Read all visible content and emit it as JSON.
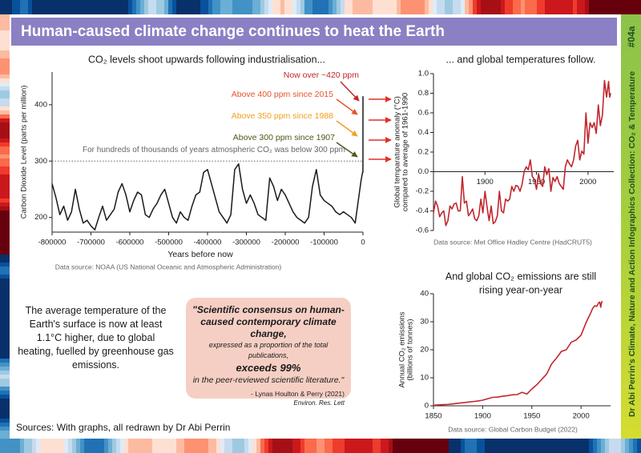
{
  "header": {
    "title": "Human-caused climate change continues to heat the Earth"
  },
  "side": {
    "code": "#04a",
    "collection": "Dr Abi Perrin's Climate, Nature and Action Infographics Collection: CO₂ & Temperature"
  },
  "chart_data": [
    {
      "type": "line",
      "title": "CO₂ levels shoot upwards following industrialisation...",
      "xlabel": "Years before now",
      "ylabel": [
        "Carbon Dioxide Level (parts per million)"
      ],
      "source": "Data source: NOAA (US National Oceanic and Atmospheric Administration)",
      "color": "#1a1a1a",
      "x": [
        -800000,
        -790000,
        -780000,
        -770000,
        -760000,
        -750000,
        -740000,
        -730000,
        -720000,
        -710000,
        -700000,
        -690000,
        -680000,
        -670000,
        -660000,
        -650000,
        -640000,
        -630000,
        -620000,
        -610000,
        -600000,
        -590000,
        -580000,
        -570000,
        -560000,
        -550000,
        -540000,
        -530000,
        -520000,
        -510000,
        -500000,
        -490000,
        -480000,
        -470000,
        -460000,
        -450000,
        -440000,
        -430000,
        -420000,
        -410000,
        -400000,
        -390000,
        -380000,
        -370000,
        -360000,
        -350000,
        -340000,
        -330000,
        -320000,
        -310000,
        -300000,
        -290000,
        -280000,
        -270000,
        -260000,
        -250000,
        -240000,
        -230000,
        -220000,
        -210000,
        -200000,
        -190000,
        -180000,
        -170000,
        -160000,
        -150000,
        -140000,
        -130000,
        -120000,
        -110000,
        -100000,
        -90000,
        -80000,
        -70000,
        -60000,
        -50000,
        -40000,
        -30000,
        -20000,
        -10000,
        -5000,
        -1000,
        -200,
        -100,
        -50,
        -20,
        0
      ],
      "values": [
        260,
        235,
        205,
        220,
        195,
        210,
        250,
        215,
        190,
        195,
        185,
        178,
        200,
        220,
        195,
        205,
        215,
        245,
        260,
        240,
        210,
        230,
        245,
        240,
        205,
        200,
        215,
        225,
        240,
        250,
        225,
        200,
        190,
        210,
        200,
        195,
        220,
        240,
        245,
        280,
        285,
        260,
        235,
        210,
        200,
        190,
        205,
        285,
        295,
        250,
        225,
        240,
        225,
        205,
        200,
        195,
        270,
        255,
        230,
        250,
        240,
        225,
        210,
        200,
        195,
        190,
        200,
        255,
        285,
        240,
        230,
        225,
        220,
        210,
        205,
        210,
        205,
        200,
        190,
        240,
        265,
        280,
        280,
        295,
        315,
        340,
        415
      ],
      "xlim": [
        -800000,
        0
      ],
      "ylim": [
        174,
        458
      ],
      "xticks": [
        -800000,
        -700000,
        -600000,
        -500000,
        -400000,
        -300000,
        -200000,
        -100000,
        0
      ],
      "yticks": [
        200,
        300,
        400
      ],
      "threshold": 300,
      "threshold_label": "For hundreds of thousands of years atmospheric CO₂ was below 300 ppm",
      "annotations": [
        {
          "text": "Now over ~420 ppm",
          "color": "#c0272d"
        },
        {
          "text": "Above 400 ppm since 2015",
          "color": "#e8532a"
        },
        {
          "text": "Above 350 ppm since 1988",
          "color": "#f0a020"
        },
        {
          "text": "Above 300 ppm since 1907",
          "color": "#4a5a1e"
        }
      ]
    },
    {
      "type": "line",
      "title": "... and global temperatures follow.",
      "ylabel": [
        "Global temparature anomaly (°C)",
        "compared to average of 1961-1990"
      ],
      "source": "Data source: Met Office Hadley Centre (HadCRUT5)",
      "color": "#c0272d",
      "x": [
        1850,
        1852,
        1854,
        1856,
        1858,
        1860,
        1862,
        1864,
        1866,
        1868,
        1870,
        1872,
        1874,
        1876,
        1878,
        1880,
        1882,
        1884,
        1886,
        1888,
        1890,
        1892,
        1894,
        1896,
        1898,
        1900,
        1902,
        1904,
        1906,
        1908,
        1910,
        1912,
        1914,
        1916,
        1918,
        1920,
        1922,
        1924,
        1926,
        1928,
        1930,
        1932,
        1934,
        1936,
        1938,
        1940,
        1942,
        1944,
        1946,
        1948,
        1950,
        1952,
        1954,
        1956,
        1958,
        1960,
        1962,
        1964,
        1966,
        1968,
        1970,
        1972,
        1974,
        1976,
        1978,
        1980,
        1982,
        1984,
        1986,
        1988,
        1990,
        1992,
        1994,
        1996,
        1998,
        2000,
        2002,
        2004,
        2006,
        2008,
        2010,
        2012,
        2014,
        2016,
        2018,
        2020,
        2021,
        2022
      ],
      "values": [
        -0.42,
        -0.3,
        -0.35,
        -0.46,
        -0.42,
        -0.4,
        -0.55,
        -0.5,
        -0.35,
        -0.38,
        -0.33,
        -0.32,
        -0.4,
        -0.4,
        -0.05,
        -0.32,
        -0.3,
        -0.45,
        -0.42,
        -0.38,
        -0.48,
        -0.5,
        -0.45,
        -0.28,
        -0.42,
        -0.2,
        -0.36,
        -0.5,
        -0.35,
        -0.53,
        -0.51,
        -0.45,
        -0.2,
        -0.4,
        -0.42,
        -0.28,
        -0.3,
        -0.28,
        -0.15,
        -0.2,
        -0.14,
        -0.15,
        -0.2,
        -0.13,
        0.0,
        0.05,
        0.02,
        0.12,
        -0.05,
        -0.08,
        -0.18,
        -0.02,
        -0.12,
        -0.15,
        0.05,
        -0.03,
        0.03,
        -0.2,
        -0.06,
        -0.1,
        -0.05,
        -0.12,
        -0.15,
        -0.18,
        0.05,
        0.12,
        0.08,
        0.05,
        0.12,
        0.26,
        0.32,
        0.12,
        0.21,
        0.18,
        0.6,
        0.29,
        0.5,
        0.45,
        0.5,
        0.39,
        0.68,
        0.47,
        0.58,
        0.93,
        0.76,
        0.92,
        0.76,
        0.8
      ],
      "xlim": [
        1850,
        2025
      ],
      "ylim": [
        -0.6,
        1.0
      ],
      "xticks": [
        1900,
        1950,
        2000
      ],
      "yticks": [
        {
          "value": 1.0,
          "label": "1.0"
        },
        0.8,
        0.6,
        0.4,
        0.2,
        {
          "value": 0.0,
          "label": "0.0"
        },
        -0.2,
        -0.4,
        -0.6
      ]
    },
    {
      "type": "line",
      "title": [
        "And global CO₂ emissions are still",
        "rising year-on-year"
      ],
      "ylabel": [
        "Annual CO₂ emissions",
        "(billions of tonnes)"
      ],
      "source": "Data source: Global Carbon Budget (2022)",
      "color": "#c0272d",
      "x": [
        1850,
        1855,
        1860,
        1865,
        1870,
        1875,
        1880,
        1885,
        1890,
        1895,
        1900,
        1905,
        1910,
        1915,
        1920,
        1925,
        1930,
        1935,
        1940,
        1945,
        1950,
        1955,
        1960,
        1965,
        1970,
        1975,
        1980,
        1985,
        1990,
        1995,
        2000,
        2005,
        2010,
        2012,
        2014,
        2016,
        2018,
        2019,
        2020,
        2021,
        2022
      ],
      "values": [
        0.2,
        0.3,
        0.4,
        0.5,
        0.7,
        0.9,
        1.1,
        1.3,
        1.5,
        1.7,
        2.0,
        2.5,
        3.0,
        3.1,
        3.4,
        3.6,
        3.9,
        4.0,
        4.8,
        4.2,
        6.0,
        7.5,
        9.4,
        11.3,
        14.9,
        17.0,
        19.4,
        20.0,
        22.7,
        23.5,
        25.2,
        29.6,
        33.3,
        34.9,
        35.7,
        35.5,
        36.8,
        37.0,
        35.2,
        37.1,
        37.2
      ],
      "xlim": [
        1850,
        2030
      ],
      "ylim": [
        0,
        40
      ],
      "xticks": [
        1850,
        1900,
        1950,
        2000
      ],
      "yticks": [
        0,
        10,
        20,
        30,
        40
      ]
    }
  ],
  "text": {
    "paragraph": "The average temperature of the Earth's surface is now at least 1.1°C higher, due to global heating, fuelled by greenhouse gas emissions.",
    "footer": "Sources: With graphs, all redrawn by Dr Abi Perrin"
  },
  "quote": {
    "heading": "\"Scientific consensus on human-caused contemporary climate change,",
    "detail": "expressed as a proportion of the total publications,",
    "highlight": "exceeds 99%",
    "tail": "in the peer-reviewed scientific literature.\"",
    "citation": "- Lynas Houlton & Perry (2021)",
    "journal": "Environ. Res. Lett"
  }
}
